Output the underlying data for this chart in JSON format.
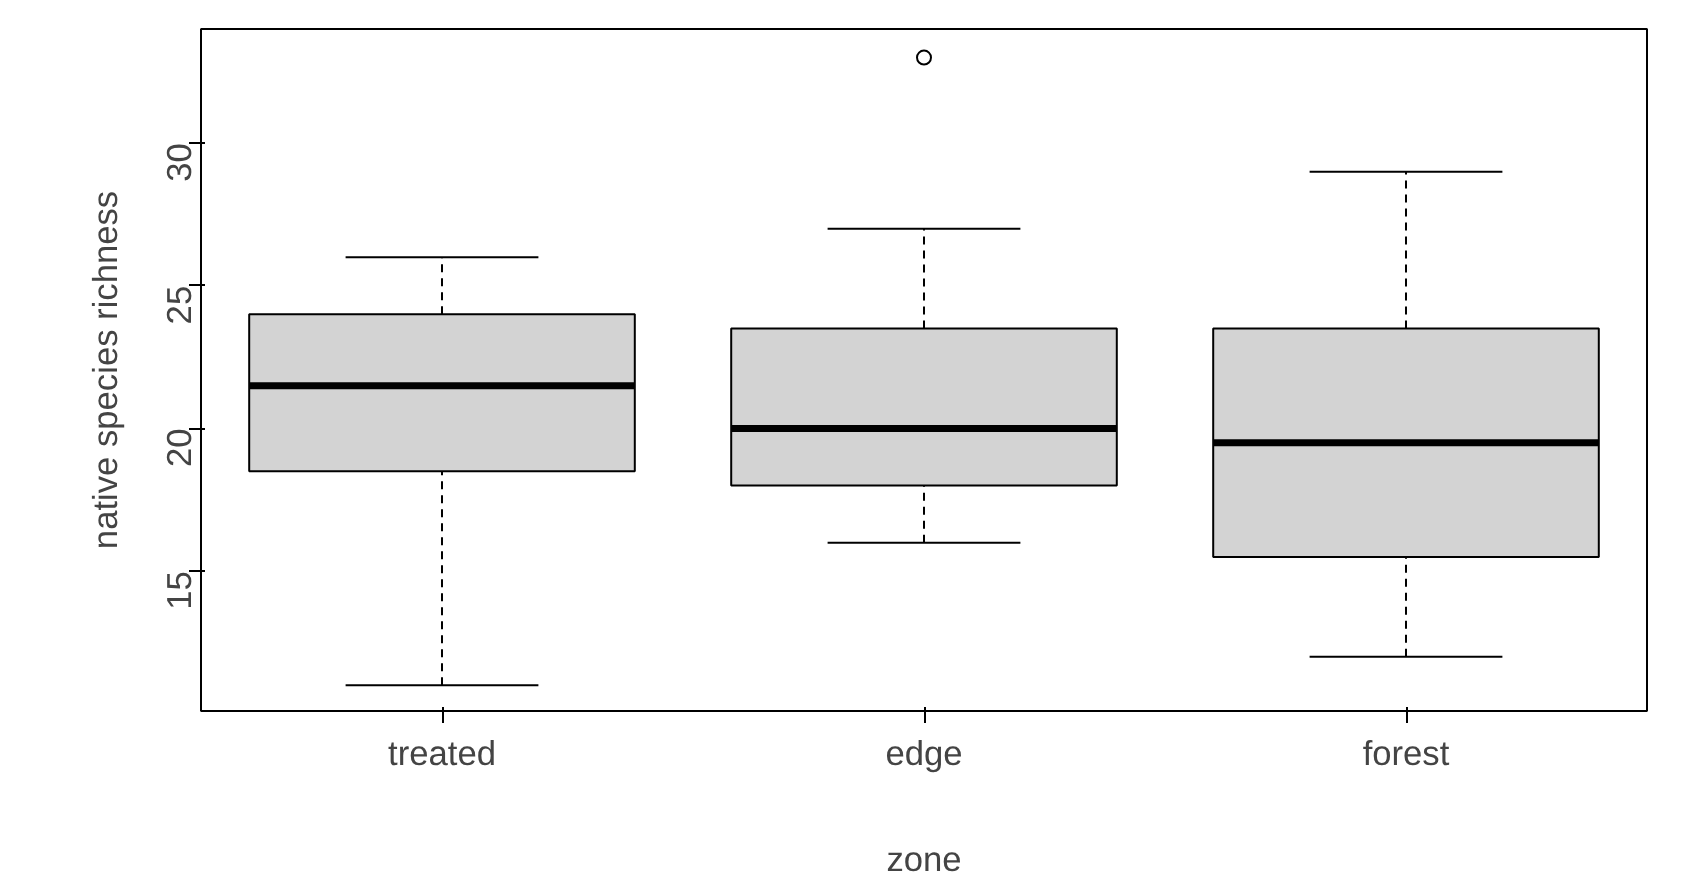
{
  "chart_data": {
    "type": "box",
    "xlabel": "zone",
    "ylabel": "native species richness",
    "categories": [
      "treated",
      "edge",
      "forest"
    ],
    "boxes": [
      {
        "low": 11,
        "q1": 18.5,
        "median": 21.5,
        "q3": 24,
        "high": 26
      },
      {
        "low": 16,
        "q1": 18,
        "median": 20,
        "q3": 23.5,
        "high": 27,
        "outliers": [
          33
        ]
      },
      {
        "low": 12,
        "q1": 15.5,
        "median": 19.5,
        "q3": 23.5,
        "high": 29
      }
    ],
    "color": "#d3d3d3",
    "ylim": [
      10.1,
      34.0
    ],
    "yticks": [
      15,
      20,
      25,
      30
    ],
    "grid": false
  }
}
